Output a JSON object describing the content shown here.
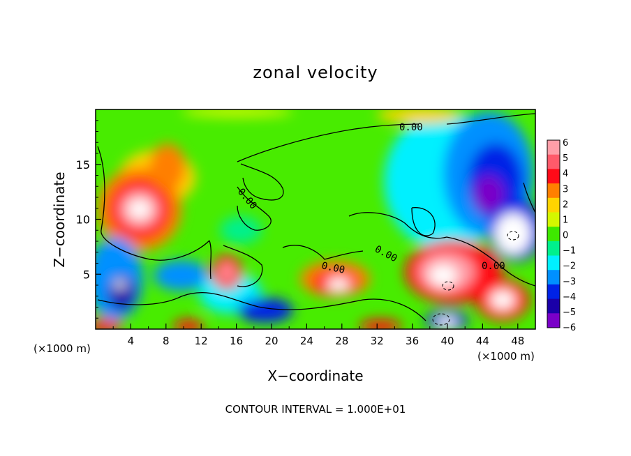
{
  "chart_data": {
    "type": "heatmap",
    "title": "zonal velocity",
    "xlabel": "X−coordinate",
    "ylabel": "Z−coordinate",
    "x_unit_left": "(×1000 m)",
    "x_unit_right": "(×1000 m)",
    "footer": "CONTOUR INTERVAL = 1.000E+01",
    "xlim": [
      0,
      50
    ],
    "ylim": [
      0,
      20
    ],
    "x_ticks": [
      "4",
      "8",
      "12",
      "16",
      "20",
      "24",
      "28",
      "32",
      "36",
      "40",
      "44",
      "48"
    ],
    "y_ticks": [
      "5",
      "10",
      "15"
    ],
    "colorbar": {
      "min": -6,
      "max": 6,
      "labels": [
        "6",
        "5",
        "4",
        "3",
        "2",
        "1",
        "0",
        "−1",
        "−2",
        "−3",
        "−4",
        "−5",
        "−6"
      ],
      "colors": [
        "#ff9ea8",
        "#ff5a6a",
        "#ff0a18",
        "#ff7f00",
        "#ffd400",
        "#d4f700",
        "#3ee800",
        "#00f08c",
        "#00f0ff",
        "#0090ff",
        "#0022e6",
        "#1a00a8",
        "#7a00c8"
      ]
    },
    "contour_labels": [
      "0.00",
      "0.00",
      "0.00",
      "0.00",
      "0.00"
    ]
  }
}
